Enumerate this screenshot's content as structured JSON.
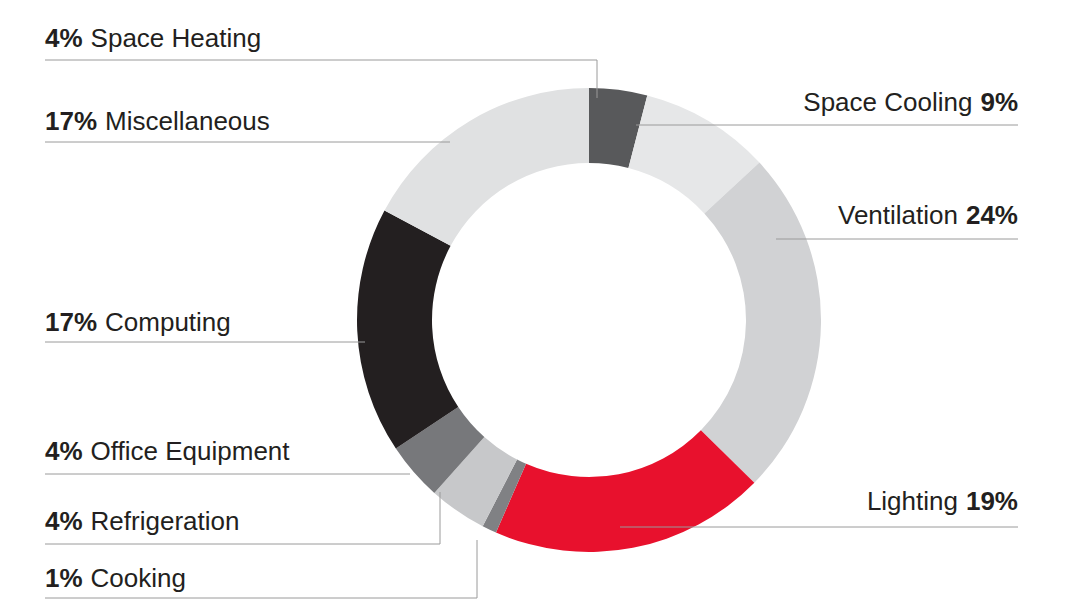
{
  "chart_data": {
    "type": "donut",
    "categories": [
      "Space Heating",
      "Space Cooling",
      "Ventilation",
      "Lighting",
      "Cooking",
      "Refrigeration",
      "Office Equipment",
      "Computing",
      "Miscellaneous"
    ],
    "values": [
      4,
      9,
      24,
      19,
      1,
      4,
      4,
      17,
      17
    ],
    "value_labels": [
      "4%",
      "9%",
      "24%",
      "19%",
      "1%",
      "4%",
      "4%",
      "17%",
      "17%"
    ],
    "colors": [
      "#58595b",
      "#e6e7e8",
      "#d1d2d4",
      "#e8112d",
      "#808184",
      "#c7c8ca",
      "#77787b",
      "#231f20",
      "#e0e1e2"
    ],
    "data_labels": true
  }
}
